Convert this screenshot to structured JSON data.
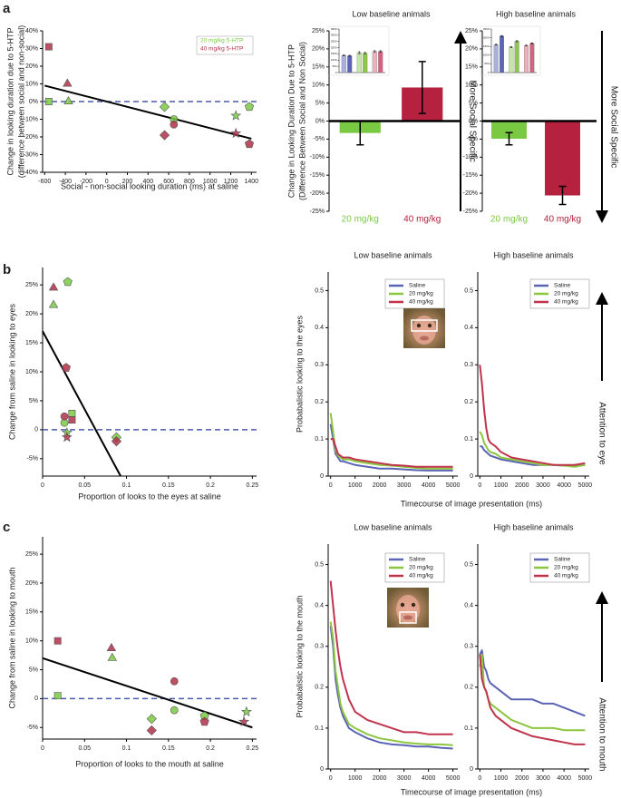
{
  "panel_labels": [
    "a",
    "b",
    "c"
  ],
  "chart_data": [
    {
      "type": "scatter",
      "ylabel": [
        "Change in looking duration due to 5-HTP",
        "(difference between social and non-social)"
      ],
      "xlabel": "Social - non-social looking duration (ms) at saline",
      "xlim": [
        -620,
        1450
      ],
      "xticks": [
        -600,
        -400,
        -200,
        0,
        200,
        400,
        600,
        800,
        1000,
        1200,
        1400
      ],
      "ylim": [
        -40,
        40
      ],
      "yticks": [
        {
          "value": -40,
          "label": "-40%"
        },
        {
          "value": -30,
          "label": "-30%"
        },
        {
          "value": -20,
          "label": "-20%"
        },
        {
          "value": -10,
          "label": "-10%"
        },
        {
          "value": 0,
          "label": "0%"
        },
        {
          "value": 10,
          "label": "10%"
        },
        {
          "value": 20,
          "label": "20%"
        },
        {
          "value": 30,
          "label": "30%"
        },
        {
          "value": 40,
          "label": "40%"
        }
      ],
      "hline": 0,
      "fit": {
        "x": [
          -600,
          1400
        ],
        "values": [
          9,
          -21
        ]
      },
      "series": [
        {
          "name": "20 mg/kg 5-HTP",
          "color": "#7ac943",
          "x": [
            -560,
            -370,
            560,
            650,
            1250,
            1380
          ],
          "values": [
            0,
            0,
            -3,
            -10,
            -8,
            -3
          ],
          "markers": [
            "square",
            "triangle",
            "diamond",
            "circle",
            "star",
            "pentagon"
          ]
        },
        {
          "name": "40 mg/kg 5-HTP",
          "color": "#b03048",
          "x": [
            -560,
            -380,
            560,
            650,
            1250,
            1380
          ],
          "values": [
            31,
            10,
            -19,
            -13,
            -18,
            -24
          ],
          "markers": [
            "square",
            "triangle",
            "diamond",
            "circle",
            "star",
            "pentagon"
          ]
        }
      ]
    },
    {
      "type": "bar",
      "title": "Low baseline animals",
      "ylabel": [
        "Change in Looking Duration Due to 5-HTP",
        "(Difference Between Social and Non Social)"
      ],
      "categories": [
        "20 mg/kg",
        "40 mg/kg"
      ],
      "values": [
        -3.3,
        9.3
      ],
      "errors": [
        3.3,
        7.2
      ],
      "colors": [
        "#7ac943",
        "#b5213e"
      ],
      "ylim": [
        -25,
        25
      ],
      "yticks": [
        {
          "value": -25,
          "label": "-25%"
        },
        {
          "value": -20,
          "label": "-20%"
        },
        {
          "value": -15,
          "label": "-15%"
        },
        {
          "value": -10,
          "label": "-10%"
        },
        {
          "value": -5,
          "label": "-5%"
        },
        {
          "value": 0,
          "label": "0%"
        },
        {
          "value": 5,
          "label": "5%"
        },
        {
          "value": 10,
          "label": "10%"
        },
        {
          "value": 15,
          "label": "15%"
        },
        {
          "value": 20,
          "label": "20%"
        },
        {
          "value": 25,
          "label": "25%"
        }
      ],
      "annotation": "More Social Specific",
      "arrow": "up"
    },
    {
      "type": "bar",
      "categories": [
        null,
        null,
        null,
        null,
        null,
        null
      ],
      "values": [
        1380,
        1350,
        1600,
        1560,
        1700,
        1700
      ],
      "errors": [
        40,
        40,
        80,
        60,
        60,
        60
      ],
      "colors": [
        "#aab0dd",
        "#5a64b8",
        "#c5e6a8",
        "#8cc84b",
        "#eeb0bc",
        "#d86080"
      ],
      "ylim": [
        0,
        3500
      ],
      "yticks": [
        0,
        500,
        1000,
        1500,
        2000,
        2500,
        3000,
        3500
      ]
    },
    {
      "type": "bar",
      "title": "High baseline animals",
      "categories": [
        "20 mg/kg",
        "40 mg/kg"
      ],
      "values": [
        -4.9,
        -20.6
      ],
      "errors": [
        1.7,
        2.5
      ],
      "colors": [
        "#7ac943",
        "#b5213e"
      ],
      "ylim": [
        -25,
        25
      ],
      "yticks": [
        {
          "value": -25,
          "label": "-25%"
        },
        {
          "value": -20,
          "label": "-20%"
        },
        {
          "value": -15,
          "label": "-15%"
        },
        {
          "value": -10,
          "label": "-10%"
        },
        {
          "value": -5,
          "label": "-5%"
        },
        {
          "value": 0,
          "label": "0%"
        },
        {
          "value": 5,
          "label": "5%"
        },
        {
          "value": 10,
          "label": "10%"
        },
        {
          "value": 15,
          "label": "15%"
        },
        {
          "value": 20,
          "label": "20%"
        },
        {
          "value": 25,
          "label": "25%"
        }
      ],
      "annotation": "More Social Specific",
      "arrow": "down"
    },
    {
      "type": "bar",
      "categories": [
        null,
        null,
        null,
        null,
        null,
        null
      ],
      "values": [
        1600,
        2100,
        1460,
        1800,
        1550,
        1680
      ],
      "errors": [
        30,
        30,
        30,
        30,
        30,
        30
      ],
      "colors": [
        "#aab0dd",
        "#5a64b8",
        "#c5e6a8",
        "#8cc84b",
        "#eeb0bc",
        "#d86080"
      ],
      "ylim": [
        0,
        2500
      ],
      "yticks": [
        0,
        500,
        1000,
        1500,
        2000,
        2500
      ]
    },
    {
      "type": "scatter",
      "ylabel": [
        "Change from saline in looking to eyes"
      ],
      "xlabel": "Proportion of looks to the eyes at saline",
      "xlim": [
        0,
        0.255
      ],
      "xticks": [
        0,
        0.05,
        0.1,
        0.15,
        0.2,
        0.25
      ],
      "ylim": [
        -8,
        28
      ],
      "yticks": [
        {
          "value": -5,
          "label": "-5%"
        },
        0,
        {
          "value": 5,
          "label": "5%"
        },
        {
          "value": 10,
          "label": "10%"
        },
        {
          "value": 15,
          "label": "15%"
        },
        {
          "value": 20,
          "label": "20%"
        },
        {
          "value": 25,
          "label": "25%"
        }
      ],
      "hline": 0,
      "fit": {
        "x": [
          0,
          0.093
        ],
        "values": [
          17,
          -8
        ]
      },
      "series": [
        {
          "color": "#7ac943",
          "x": [
            0.013,
            0.03,
            0.026,
            0.035,
            0.029,
            0.088
          ],
          "values": [
            21.5,
            25.5,
            1.2,
            2.8,
            -0.5,
            -1.3
          ],
          "markers": [
            "triangle",
            "pentagon",
            "circle",
            "square",
            "star",
            "diamond"
          ]
        },
        {
          "color": "#b03048",
          "x": [
            0.013,
            0.028,
            0.026,
            0.035,
            0.029,
            0.088
          ],
          "values": [
            24.5,
            10.7,
            2.3,
            1.7,
            -1.3,
            -2
          ],
          "markers": [
            "triangle",
            "pentagon",
            "circle",
            "square",
            "star",
            "diamond"
          ]
        }
      ]
    },
    {
      "type": "line",
      "title": "Low baseline animals",
      "ylabel": "Probabalistic looking to the eyes",
      "xlabel": "Timecourse of image presentation (ms)",
      "x": [
        0,
        100,
        200,
        300,
        400,
        500,
        750,
        1000,
        1500,
        2000,
        2500,
        3000,
        3500,
        4000,
        4500,
        5000
      ],
      "xlim": [
        -100,
        5200
      ],
      "xticks": [
        0,
        1000,
        2000,
        3000,
        4000,
        5000
      ],
      "ylim": [
        0,
        0.55
      ],
      "yticks": [
        0,
        0.1,
        0.2,
        0.3,
        0.4,
        0.5
      ],
      "series": [
        {
          "name": "Saline",
          "color": "#5b63b5",
          "values": [
            0.14,
            0.1,
            0.06,
            0.05,
            0.04,
            0.04,
            0.035,
            0.03,
            0.025,
            0.02,
            0.02,
            0.018,
            0.016,
            0.015,
            0.015,
            0.015
          ]
        },
        {
          "name": "20 mg/kg",
          "color": "#8cc63f",
          "values": [
            0.17,
            0.12,
            0.07,
            0.055,
            0.05,
            0.045,
            0.045,
            0.04,
            0.035,
            0.03,
            0.028,
            0.025,
            0.022,
            0.02,
            0.02,
            0.02
          ]
        },
        {
          "name": "40 mg/kg",
          "color": "#c0334d",
          "values": [
            0.1,
            0.1,
            0.08,
            0.06,
            0.055,
            0.05,
            0.05,
            0.045,
            0.04,
            0.035,
            0.03,
            0.028,
            0.025,
            0.025,
            0.025,
            0.025
          ]
        }
      ]
    },
    {
      "type": "line",
      "title": "High baseline animals",
      "annotation": "Attention to eye",
      "arrow": "up",
      "x": [
        0,
        100,
        200,
        300,
        400,
        500,
        750,
        1000,
        1500,
        2000,
        2500,
        3000,
        3500,
        4000,
        4500,
        5000
      ],
      "xlim": [
        -100,
        5200
      ],
      "xticks": [
        0,
        1000,
        2000,
        3000,
        4000,
        5000
      ],
      "ylim": [
        0,
        0.55
      ],
      "yticks": [
        0,
        0.1,
        0.2,
        0.3,
        0.4,
        0.5
      ],
      "series": [
        {
          "name": "Saline",
          "color": "#5b63b5",
          "values": [
            0.08,
            0.08,
            0.07,
            0.065,
            0.06,
            0.055,
            0.05,
            0.045,
            0.04,
            0.035,
            0.03,
            0.03,
            0.03,
            0.028,
            0.028,
            0.03
          ]
        },
        {
          "name": "20 mg/kg",
          "color": "#8cc63f",
          "values": [
            0.12,
            0.11,
            0.09,
            0.08,
            0.07,
            0.065,
            0.06,
            0.05,
            0.045,
            0.04,
            0.035,
            0.03,
            0.03,
            0.028,
            0.025,
            0.03
          ]
        },
        {
          "name": "40 mg/kg",
          "color": "#c0334d",
          "values": [
            0.3,
            0.25,
            0.18,
            0.13,
            0.1,
            0.09,
            0.08,
            0.065,
            0.05,
            0.045,
            0.04,
            0.035,
            0.03,
            0.03,
            0.03,
            0.035
          ]
        }
      ]
    },
    {
      "type": "scatter",
      "ylabel": [
        "Change from saline in looking to mouth"
      ],
      "xlabel": "Proportion of looks to the mouth at saline",
      "xlim": [
        0,
        0.255
      ],
      "xticks": [
        0,
        0.05,
        0.1,
        0.15,
        0.2,
        0.25
      ],
      "ylim": [
        -7,
        28
      ],
      "yticks": [
        {
          "value": -5,
          "label": "-5%"
        },
        0,
        {
          "value": 5,
          "label": "5%"
        },
        {
          "value": 10,
          "label": "10%"
        },
        {
          "value": 15,
          "label": "15%"
        },
        {
          "value": 20,
          "label": "20%"
        },
        {
          "value": 25,
          "label": "25%"
        }
      ],
      "hline": 0,
      "fit": {
        "x": [
          0,
          0.25
        ],
        "values": [
          7,
          -5
        ]
      },
      "series": [
        {
          "color": "#7ac943",
          "x": [
            0.018,
            0.083,
            0.13,
            0.157,
            0.193,
            0.243
          ],
          "values": [
            0.5,
            7,
            -3.5,
            -2,
            -3,
            -2.3
          ],
          "markers": [
            "square",
            "triangle",
            "diamond",
            "circle",
            "pentagon",
            "star"
          ]
        },
        {
          "color": "#b03048",
          "x": [
            0.018,
            0.082,
            0.13,
            0.157,
            0.193,
            0.24
          ],
          "values": [
            10,
            8.7,
            -5.5,
            3,
            -4,
            -4
          ],
          "markers": [
            "square",
            "triangle",
            "diamond",
            "circle",
            "pentagon",
            "star"
          ]
        }
      ]
    },
    {
      "type": "line",
      "title": "Low baseline animals",
      "ylabel": "Probabalistic looking to the mouth",
      "xlabel": "Timecourse of image presentation (ms)",
      "x": [
        0,
        100,
        200,
        300,
        400,
        500,
        750,
        1000,
        1500,
        2000,
        2500,
        3000,
        3500,
        4000,
        4500,
        5000
      ],
      "xlim": [
        -100,
        5200
      ],
      "xticks": [
        0,
        1000,
        2000,
        3000,
        4000,
        5000
      ],
      "ylim": [
        0,
        0.55
      ],
      "yticks": [
        0,
        0.1,
        0.2,
        0.3,
        0.4,
        0.5
      ],
      "series": [
        {
          "name": "Saline",
          "color": "#5b63b5",
          "values": [
            0.35,
            0.3,
            0.22,
            0.18,
            0.15,
            0.13,
            0.1,
            0.09,
            0.075,
            0.065,
            0.06,
            0.058,
            0.055,
            0.055,
            0.052,
            0.05
          ]
        },
        {
          "name": "20 mg/kg",
          "color": "#8cc63f",
          "values": [
            0.36,
            0.32,
            0.24,
            0.2,
            0.16,
            0.14,
            0.11,
            0.1,
            0.085,
            0.075,
            0.07,
            0.065,
            0.062,
            0.06,
            0.06,
            0.058
          ]
        },
        {
          "name": "40 mg/kg",
          "color": "#c0334d",
          "values": [
            0.46,
            0.4,
            0.34,
            0.29,
            0.25,
            0.22,
            0.17,
            0.14,
            0.12,
            0.11,
            0.1,
            0.09,
            0.09,
            0.085,
            0.085,
            0.085
          ]
        }
      ]
    },
    {
      "type": "line",
      "title": "High baseline animals",
      "annotation": "Attention to mouth",
      "arrow": "up",
      "x": [
        0,
        100,
        200,
        300,
        400,
        500,
        750,
        1000,
        1500,
        2000,
        2500,
        3000,
        3500,
        4000,
        4500,
        5000
      ],
      "xlim": [
        -100,
        5200
      ],
      "xticks": [
        0,
        1000,
        2000,
        3000,
        4000,
        5000
      ],
      "ylim": [
        0,
        0.55
      ],
      "yticks": [
        0,
        0.1,
        0.2,
        0.3,
        0.4,
        0.5
      ],
      "series": [
        {
          "name": "Saline",
          "color": "#5b63b5",
          "values": [
            0.28,
            0.29,
            0.25,
            0.24,
            0.22,
            0.21,
            0.2,
            0.19,
            0.17,
            0.17,
            0.17,
            0.16,
            0.16,
            0.15,
            0.14,
            0.13
          ]
        },
        {
          "name": "20 mg/kg",
          "color": "#8cc63f",
          "values": [
            0.25,
            0.28,
            0.2,
            0.19,
            0.17,
            0.16,
            0.15,
            0.14,
            0.12,
            0.11,
            0.1,
            0.1,
            0.1,
            0.095,
            0.095,
            0.095
          ]
        },
        {
          "name": "40 mg/kg",
          "color": "#c0334d",
          "values": [
            0.28,
            0.22,
            0.2,
            0.19,
            0.17,
            0.15,
            0.13,
            0.12,
            0.1,
            0.09,
            0.08,
            0.075,
            0.07,
            0.065,
            0.06,
            0.06
          ]
        }
      ]
    }
  ]
}
